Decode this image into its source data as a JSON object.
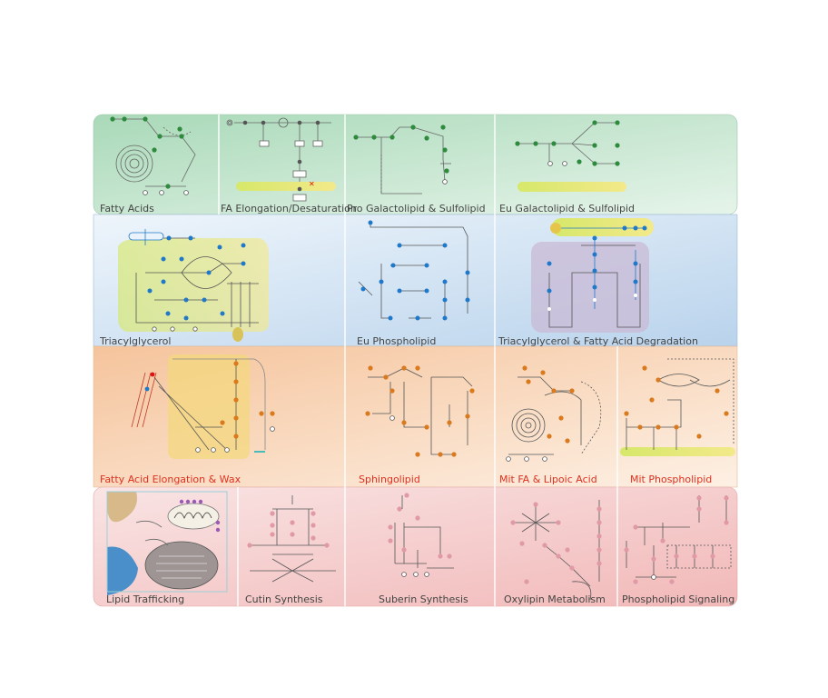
{
  "colors": {
    "green_row": "#bfe3cc",
    "blue_row": "#c9def0",
    "orange_row": "#f7d3b4",
    "pink_row": "#f4c6c6",
    "green_node": "#2e8b3e",
    "blue_node": "#1f78c8",
    "orange_node": "#d97a1e",
    "pink_node": "#e09aa6",
    "label_default": "#444444",
    "label_red": "#e0301e",
    "yellow_band": "#e8e06a"
  },
  "panels": [
    {
      "name": "fatty-acids",
      "label": "Fatty Acids",
      "row": "green",
      "red": false
    },
    {
      "name": "fa-elongation-desaturation",
      "label": "FA Elongation/Desaturation",
      "row": "green",
      "red": false
    },
    {
      "name": "pro-galactolipid-sulfolipid",
      "label": "Pro Galactolipid & Sulfolipid",
      "row": "green",
      "red": false
    },
    {
      "name": "eu-galactolipid-sulfolipid",
      "label": "Eu Galactolipid & Sulfolipid",
      "row": "green",
      "red": false
    },
    {
      "name": "triacylglycerol",
      "label": "Triacylglycerol",
      "row": "blue",
      "red": false
    },
    {
      "name": "eu-phospholipid",
      "label": "Eu Phospholipid",
      "row": "blue",
      "red": false
    },
    {
      "name": "tag-fa-degradation",
      "label": "Triacylglycerol & Fatty Acid Degradation",
      "row": "blue",
      "red": false
    },
    {
      "name": "fa-elongation-wax",
      "label": "Fatty Acid Elongation & Wax",
      "row": "orange",
      "red": true
    },
    {
      "name": "sphingolipid",
      "label": "Sphingolipid",
      "row": "orange",
      "red": true
    },
    {
      "name": "mit-fa-lipoic-acid",
      "label": "Mit FA & Lipoic Acid",
      "row": "orange",
      "red": true
    },
    {
      "name": "mit-phospholipid",
      "label": "Mit Phospholipid",
      "row": "orange",
      "red": true
    },
    {
      "name": "lipid-trafficking",
      "label": "Lipid Trafficking",
      "row": "pink",
      "red": false
    },
    {
      "name": "cutin-synthesis",
      "label": "Cutin Synthesis",
      "row": "pink",
      "red": false
    },
    {
      "name": "suberin-synthesis",
      "label": "Suberin Synthesis",
      "row": "pink",
      "red": false
    },
    {
      "name": "oxylipin-metabolism",
      "label": "Oxylipin Metabolism",
      "row": "pink",
      "red": false
    },
    {
      "name": "phospholipid-signaling",
      "label": "Phospholipid Signaling",
      "row": "pink",
      "red": false
    }
  ]
}
